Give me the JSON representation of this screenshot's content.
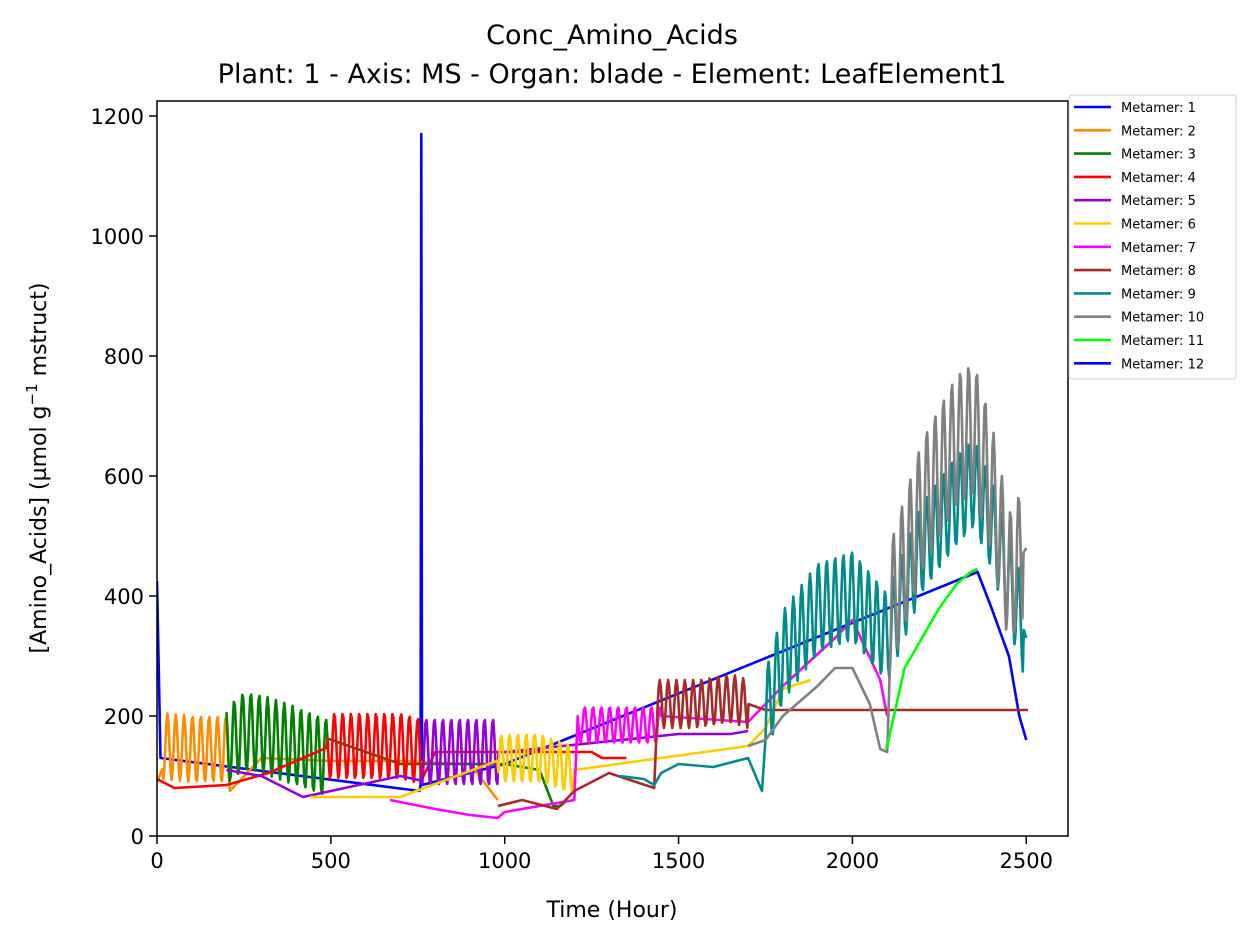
{
  "chart_data": {
    "type": "line",
    "title": "Conc_Amino_Acids",
    "subtitle": "Plant: 1 - Axis: MS - Organ: blade - Element: LeafElement1",
    "xlabel": "Time (Hour)",
    "ylabel_main": "[Amino_Acids] (µmol g",
    "ylabel_sup": "−1",
    "ylabel_end": " mstruct)",
    "xlim": [
      0,
      2620
    ],
    "ylim": [
      0,
      1225
    ],
    "xticks": [
      0,
      500,
      1000,
      1500,
      2000,
      2500
    ],
    "yticks": [
      0,
      200,
      400,
      600,
      800,
      1000,
      1200
    ],
    "grid": false,
    "legend_position": "outside-top-right",
    "series": [
      {
        "name": "Metamer: 1",
        "color": "#0000ff",
        "x": [
          0,
          10,
          755,
          758,
          760,
          762,
          1000,
          2360,
          2400,
          2450,
          2480,
          2500
        ],
        "y": [
          425,
          130,
          75,
          85,
          1170,
          85,
          120,
          440,
          380,
          300,
          200,
          160
        ],
        "osc": {
          "from": 0,
          "to": 0,
          "amp": 0,
          "period": 24
        }
      },
      {
        "name": "Metamer: 2",
        "color": "#ff8c00",
        "x": [
          0,
          15,
          100,
          200,
          210,
          300,
          500,
          700,
          900,
          980
        ],
        "y": [
          90,
          150,
          145,
          145,
          130,
          130,
          125,
          125,
          120,
          60
        ],
        "osc": {
          "from": 15,
          "to": 210,
          "amp": 55,
          "period": 24
        }
      },
      {
        "name": "Metamer: 3",
        "color": "#008000",
        "x": [
          200,
          250,
          300,
          400,
          490,
          700,
          1000,
          1100,
          1140,
          1160,
          1180
        ],
        "y": [
          150,
          175,
          170,
          150,
          130,
          120,
          120,
          110,
          50,
          50,
          60
        ],
        "osc": {
          "from": 200,
          "to": 490,
          "amp": 65,
          "period": 24
        }
      },
      {
        "name": "Metamer: 4",
        "color": "#ff0000",
        "x": [
          0,
          50,
          200,
          320,
          500,
          700,
          760,
          800,
          1250,
          1280,
          1300,
          1350
        ],
        "y": [
          95,
          80,
          85,
          105,
          150,
          150,
          140,
          140,
          140,
          130,
          130,
          130
        ],
        "osc": {
          "from": 490,
          "to": 760,
          "amp": 55,
          "period": 24
        }
      },
      {
        "name": "Metamer: 5",
        "color": "#9400d3",
        "x": [
          200,
          300,
          420,
          460,
          700,
          760,
          1000,
          1500,
          1650,
          1700
        ],
        "y": [
          110,
          100,
          65,
          70,
          100,
          140,
          140,
          170,
          170,
          175
        ],
        "osc": {
          "from": 760,
          "to": 980,
          "amp": 55,
          "period": 24
        }
      },
      {
        "name": "Metamer: 6",
        "color": "#ffcc00",
        "x": [
          440,
          600,
          700,
          1000,
          1100,
          1200,
          1700,
          1750,
          1800,
          1880
        ],
        "y": [
          65,
          65,
          65,
          130,
          130,
          110,
          150,
          180,
          245,
          260
        ],
        "osc": {
          "from": 980,
          "to": 1200,
          "amp": 40,
          "period": 24
        }
      },
      {
        "name": "Metamer: 7",
        "color": "#ff00ff",
        "x": [
          670,
          800,
          900,
          980,
          1000,
          1200,
          1210,
          1450,
          1700,
          1800,
          1950,
          2000,
          2080,
          2100
        ],
        "y": [
          60,
          45,
          35,
          30,
          40,
          60,
          185,
          185,
          190,
          250,
          330,
          360,
          260,
          200
        ],
        "osc": {
          "from": 1210,
          "to": 1450,
          "amp": 30,
          "period": 24
        }
      },
      {
        "name": "Metamer: 8",
        "color": "#a52a2a",
        "x": [
          980,
          1050,
          1150,
          1200,
          1300,
          1430,
          1440,
          1550,
          1650,
          1750,
          2500,
          2505
        ],
        "y": [
          50,
          60,
          45,
          75,
          105,
          80,
          220,
          220,
          230,
          210,
          210,
          210
        ],
        "osc": {
          "from": 1440,
          "to": 1700,
          "amp": 40,
          "period": 24
        }
      },
      {
        "name": "Metamer: 9",
        "color": "#008b8b",
        "x": [
          1330,
          1400,
          1430,
          1450,
          1500,
          1600,
          1700,
          1740,
          1750,
          1800,
          1900,
          2000,
          2100,
          2200,
          2300,
          2350,
          2400,
          2500
        ],
        "y": [
          100,
          95,
          85,
          105,
          120,
          115,
          130,
          75,
          200,
          300,
          380,
          400,
          330,
          480,
          560,
          590,
          520,
          330
        ],
        "osc": {
          "from": 1750,
          "to": 2490,
          "amp": 75,
          "period": 24
        }
      },
      {
        "name": "Metamer: 10",
        "color": "#808080",
        "x": [
          1700,
          1750,
          1800,
          1900,
          1950,
          2000,
          2050,
          2080,
          2100,
          2110,
          2200,
          2300,
          2350,
          2400,
          2450,
          2500
        ],
        "y": [
          150,
          160,
          200,
          250,
          280,
          280,
          220,
          145,
          140,
          380,
          550,
          660,
          680,
          580,
          430,
          480
        ],
        "osc": {
          "from": 2110,
          "to": 2490,
          "amp": 110,
          "period": 24
        }
      },
      {
        "name": "Metamer: 11",
        "color": "#00ff00",
        "x": [
          2095,
          2100,
          2150,
          2200,
          2250,
          2300,
          2340,
          2360
        ],
        "y": [
          145,
          150,
          280,
          330,
          380,
          420,
          440,
          445
        ],
        "osc": {
          "from": 0,
          "to": 0,
          "amp": 0,
          "period": 24
        }
      },
      {
        "name": "Metamer: 12",
        "color": "#0000ff",
        "x": [],
        "y": [],
        "osc": {
          "from": 0,
          "to": 0,
          "amp": 0,
          "period": 24
        }
      }
    ]
  }
}
